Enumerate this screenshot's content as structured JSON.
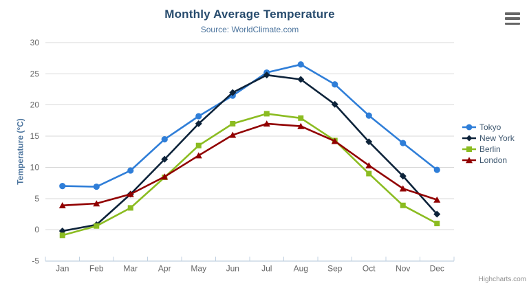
{
  "chart": {
    "title": "Monthly Average Temperature",
    "subtitle": "Source: WorldClimate.com"
  },
  "chart_data": {
    "type": "line",
    "title": "Monthly Average Temperature",
    "subtitle": "Source: WorldClimate.com",
    "categories": [
      "Jan",
      "Feb",
      "Mar",
      "Apr",
      "May",
      "Jun",
      "Jul",
      "Aug",
      "Sep",
      "Oct",
      "Nov",
      "Dec"
    ],
    "series": [
      {
        "name": "Tokyo",
        "color": "#2f7ed8",
        "marker": "circle",
        "values": [
          7.0,
          6.9,
          9.5,
          14.5,
          18.2,
          21.5,
          25.2,
          26.5,
          23.3,
          18.3,
          13.9,
          9.6
        ]
      },
      {
        "name": "New York",
        "color": "#0d233a",
        "marker": "diamond",
        "values": [
          -0.2,
          0.8,
          5.7,
          11.3,
          17.0,
          22.0,
          24.8,
          24.1,
          20.1,
          14.1,
          8.6,
          2.5
        ]
      },
      {
        "name": "Berlin",
        "color": "#8bbc21",
        "marker": "square",
        "values": [
          -0.9,
          0.6,
          3.5,
          8.4,
          13.5,
          17.0,
          18.6,
          17.9,
          14.3,
          9.0,
          3.9,
          1.0
        ]
      },
      {
        "name": "London",
        "color": "#910000",
        "marker": "triangle",
        "values": [
          3.9,
          4.2,
          5.7,
          8.5,
          11.9,
          15.2,
          17.0,
          16.6,
          14.2,
          10.3,
          6.6,
          4.8
        ]
      }
    ],
    "xlabel": "",
    "ylabel": "Temperature (°C)",
    "ylim": [
      -5,
      30
    ],
    "ytick_interval": 5,
    "grid": true,
    "legend_position": "right"
  },
  "credits": {
    "label": "Highcharts.com"
  },
  "export_menu": {
    "icon": "hamburger-icon"
  },
  "colors": {
    "title": "#274b6d",
    "subtitle": "#4d759e",
    "axis_title": "#4d759e",
    "axis_labels": "#666666",
    "grid_line": "#d8d8d8",
    "axis_line": "#c0d0e0",
    "legend_text": "#3e576f",
    "background": "#ffffff"
  }
}
